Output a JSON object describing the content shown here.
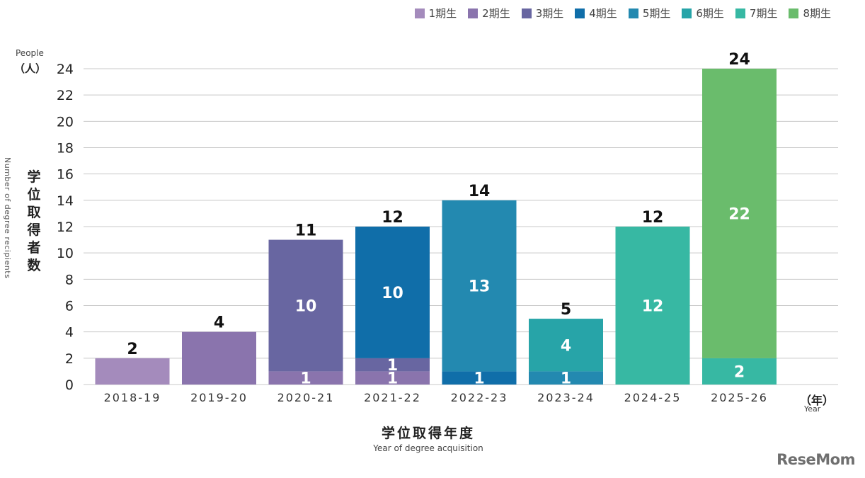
{
  "people_label": "People",
  "people_unit": "（人）",
  "ylabel_jp": "学位取得者数",
  "ylabel_en": "Number of degree recipients",
  "xtitle_jp": "学位取得年度",
  "xtitle_en": "Year of degree acquisition",
  "year_unit_jp": "（年）",
  "year_unit_en": "Year",
  "logo_text": "ReseMom",
  "chart_data": {
    "type": "bar",
    "stacked": true,
    "categories": [
      "2018-19",
      "2019-20",
      "2020-21",
      "2021-22",
      "2022-23",
      "2023-24",
      "2024-25",
      "2025-26"
    ],
    "ylim": [
      0,
      24
    ],
    "yticks": [
      0,
      2,
      4,
      6,
      8,
      10,
      12,
      14,
      16,
      18,
      20,
      22,
      24
    ],
    "grid": true,
    "legend_position": "top-right",
    "totals": [
      2,
      4,
      11,
      12,
      14,
      5,
      12,
      24
    ],
    "series": [
      {
        "name": "1期生",
        "color": "#a48bbc",
        "values": [
          2,
          0,
          0,
          0,
          0,
          0,
          0,
          0
        ],
        "labels": [
          null,
          null,
          null,
          null,
          null,
          null,
          null,
          null
        ]
      },
      {
        "name": "2期生",
        "color": "#8a74ad",
        "values": [
          0,
          4,
          1,
          1,
          0,
          0,
          0,
          0
        ],
        "labels": [
          null,
          null,
          "1",
          "1",
          null,
          null,
          null,
          null
        ]
      },
      {
        "name": "3期生",
        "color": "#6866a1",
        "values": [
          0,
          0,
          10,
          1,
          0,
          0,
          0,
          0
        ],
        "labels": [
          null,
          null,
          "10",
          "1",
          null,
          null,
          null,
          null
        ]
      },
      {
        "name": "4期生",
        "color": "#106ea9",
        "values": [
          0,
          0,
          0,
          10,
          1,
          0,
          0,
          0
        ],
        "labels": [
          null,
          null,
          null,
          "10",
          "1",
          null,
          null,
          null
        ]
      },
      {
        "name": "5期生",
        "color": "#2389b0",
        "values": [
          0,
          0,
          0,
          0,
          13,
          1,
          0,
          0
        ],
        "labels": [
          null,
          null,
          null,
          null,
          "13",
          "1",
          null,
          null
        ]
      },
      {
        "name": "6期生",
        "color": "#27a4a8",
        "values": [
          0,
          0,
          0,
          0,
          0,
          4,
          0,
          0
        ],
        "labels": [
          null,
          null,
          null,
          null,
          null,
          "4",
          null,
          null
        ]
      },
      {
        "name": "7期生",
        "color": "#37b8a3",
        "values": [
          0,
          0,
          0,
          0,
          0,
          0,
          12,
          2
        ],
        "labels": [
          null,
          null,
          null,
          null,
          null,
          null,
          "12",
          "2"
        ]
      },
      {
        "name": "8期生",
        "color": "#6abc6c",
        "values": [
          0,
          0,
          0,
          0,
          0,
          0,
          0,
          22
        ],
        "labels": [
          null,
          null,
          null,
          null,
          null,
          null,
          null,
          "22"
        ]
      }
    ]
  }
}
